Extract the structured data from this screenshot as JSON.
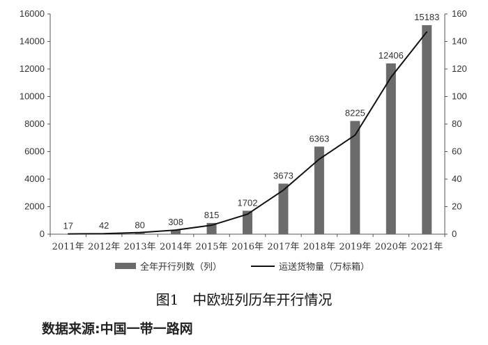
{
  "colors": {
    "bar": "#6b6b6b",
    "line": "#111111",
    "axis": "#555555"
  },
  "chart_data": {
    "type": "bar",
    "categories": [
      "2011年",
      "2012年",
      "2013年",
      "2014年",
      "2015年",
      "2016年",
      "2017年",
      "2018年",
      "2019年",
      "2020年",
      "2021年"
    ],
    "series": [
      {
        "name": "全年开行列数（列）",
        "type": "bar",
        "axis": "left",
        "values": [
          17,
          42,
          80,
          308,
          815,
          1702,
          3673,
          6363,
          8225,
          12406,
          15183
        ]
      },
      {
        "name": "运送货物量（万标箱）",
        "type": "line",
        "axis": "right",
        "values": [
          0.2,
          0.4,
          1.2,
          3,
          6.5,
          14.5,
          32,
          54.5,
          72,
          114,
          147
        ]
      }
    ],
    "ylim": [
      0,
      16000
    ],
    "yticks": [
      0,
      2000,
      4000,
      6000,
      8000,
      10000,
      12000,
      14000,
      16000
    ],
    "y2lim": [
      0,
      160
    ],
    "y2ticks": [
      0,
      20,
      40,
      60,
      80,
      100,
      120,
      140,
      160
    ],
    "grid": false,
    "legend_position": "bottom"
  },
  "legend": {
    "bar_label": "全年开行列数（列）",
    "line_label": "运送货物量（万标箱）"
  },
  "caption": {
    "title": "图1　中欧班列历年开行情况",
    "source": "数据来源:中国一带一路网"
  }
}
